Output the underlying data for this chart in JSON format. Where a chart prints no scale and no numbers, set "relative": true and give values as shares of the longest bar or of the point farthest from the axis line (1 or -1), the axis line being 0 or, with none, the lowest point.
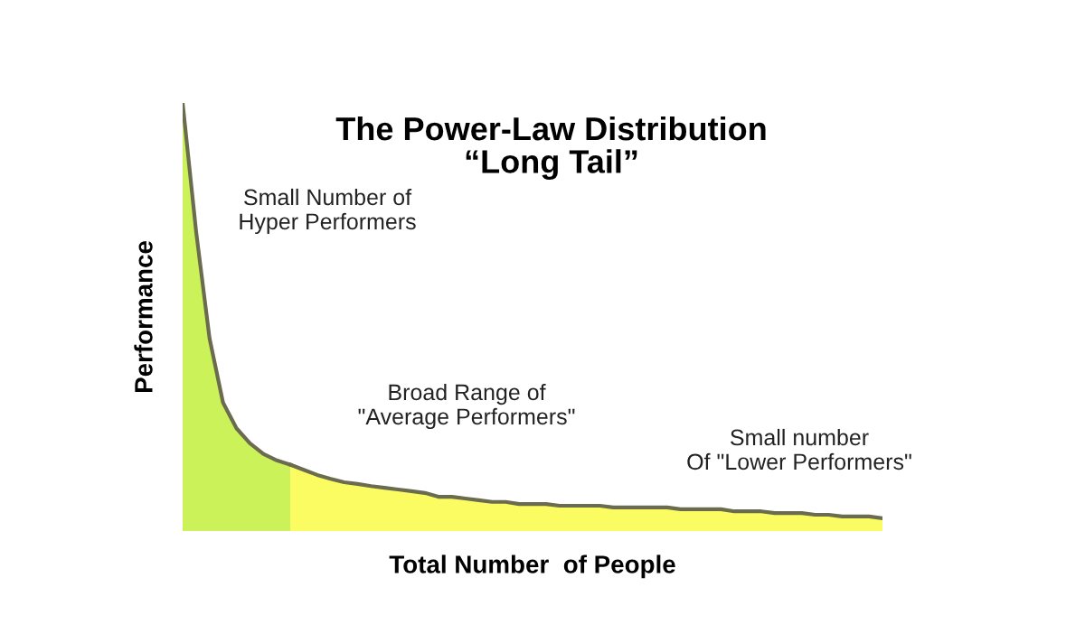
{
  "chart_data": {
    "type": "area",
    "relative": true,
    "title": "The Power-Law Distribution\n“Long Tail”",
    "xlabel": "Total Number  of People",
    "ylabel": "Performance",
    "categories": [
      null,
      null,
      null,
      null,
      null,
      null,
      null,
      null,
      null,
      null,
      null,
      null,
      null,
      null,
      null,
      null,
      null,
      null,
      null,
      null,
      null,
      null,
      null,
      null,
      null,
      null,
      null,
      null,
      null,
      null,
      null,
      null,
      null,
      null,
      null,
      null,
      null,
      null,
      null,
      null,
      null,
      null,
      null,
      null,
      null,
      null,
      null,
      null,
      null,
      null,
      null,
      null,
      null
    ],
    "series": [
      {
        "color": "#ccf25a",
        "values": [
          1.0,
          0.7,
          0.45,
          0.3,
          0.24,
          0.205,
          0.18,
          0.165,
          0.155,
          null,
          null,
          null,
          null,
          null,
          null,
          null,
          null,
          null,
          null,
          null,
          null,
          null,
          null,
          null,
          null,
          null,
          null,
          null,
          null,
          null,
          null,
          null,
          null,
          null,
          null,
          null,
          null,
          null,
          null,
          null,
          null,
          null,
          null,
          null,
          null,
          null,
          null,
          null,
          null,
          null,
          null,
          null,
          null
        ]
      },
      {
        "color": "#fbfb62",
        "values": [
          null,
          null,
          null,
          null,
          null,
          null,
          null,
          null,
          0.155,
          0.143,
          0.131,
          0.122,
          0.114,
          0.11,
          0.105,
          0.101,
          0.097,
          0.093,
          0.089,
          0.08,
          0.08,
          0.076,
          0.072,
          0.068,
          0.068,
          0.063,
          0.063,
          0.063,
          0.059,
          0.059,
          0.059,
          0.059,
          0.055,
          0.055,
          0.055,
          0.055,
          0.055,
          0.051,
          0.051,
          0.051,
          0.051,
          0.046,
          0.046,
          0.046,
          0.042,
          0.042,
          0.042,
          0.038,
          0.038,
          0.034,
          0.034,
          0.034,
          0.03
        ]
      }
    ],
    "annotations": [
      "Small Number of\nHyper Performers",
      "Broad Range of\n\"Average Performers\"",
      "Small number\nOf \"Lower Performers\""
    ],
    "grid": false,
    "legend": false
  }
}
